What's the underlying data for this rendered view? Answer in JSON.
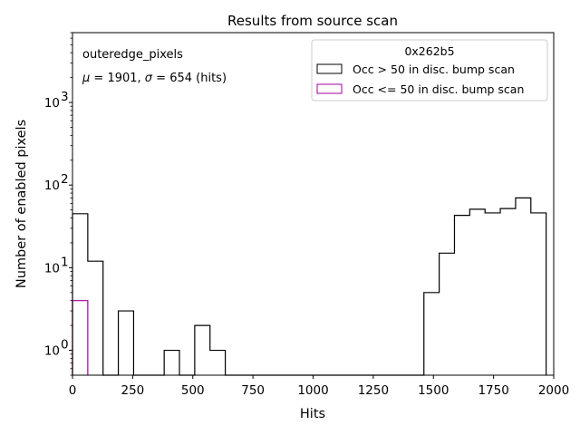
{
  "chart_data": {
    "type": "histogram",
    "title": "Results from source scan",
    "xlabel": "Hits",
    "ylabel": "Number of enabled pixels",
    "xlim": [
      0,
      2000
    ],
    "ylim": [
      0.5,
      7000
    ],
    "yscale": "log",
    "x_ticks": [
      0,
      250,
      500,
      750,
      1000,
      1250,
      1500,
      1750,
      2000
    ],
    "y_major_ticks": [
      1,
      10,
      100,
      1000
    ],
    "y_tick_labels": [
      "10",
      "10",
      "10",
      "10"
    ],
    "y_tick_exponents": [
      "0",
      "1",
      "2",
      "3"
    ],
    "annotation_line1": "outeredge_pixels",
    "annotation_line2_parts": {
      "mu_symbol": "μ",
      "mu_text": " = 1901, ",
      "sigma_symbol": "σ",
      "sigma_text": " = 654 (hits)"
    },
    "legend": {
      "title": "0x262b5",
      "placement": "upper right"
    },
    "bin_edges": [
      0,
      63.5,
      127,
      190.5,
      254,
      317.5,
      381,
      444.5,
      508,
      571.5,
      635,
      698.5,
      762,
      825.5,
      889,
      952.5,
      1016,
      1079.5,
      1143,
      1206.5,
      1270,
      1333.5,
      1397,
      1460.5,
      1524,
      1587.5,
      1651,
      1714.5,
      1778,
      1841.5,
      1905,
      1968.5
    ],
    "series": [
      {
        "name": "Occ > 50 in disc. bump scan",
        "color": "#000000",
        "values": [
          45,
          12,
          0,
          3,
          0,
          0,
          1,
          0,
          2,
          1,
          0,
          0,
          0,
          0,
          0,
          0,
          0,
          0,
          0,
          0,
          0,
          0,
          0,
          5,
          15,
          43,
          51,
          46,
          52,
          70,
          46
        ]
      },
      {
        "name": "Occ <= 50 in disc. bump scan",
        "color": "#a000a0",
        "values": [
          4,
          0,
          0,
          0,
          0,
          0,
          0,
          0,
          0,
          0,
          0,
          0,
          0,
          0,
          0,
          0,
          0,
          0,
          0,
          0,
          0,
          0,
          0,
          0,
          0,
          0,
          0,
          0,
          0,
          0,
          0
        ]
      }
    ]
  }
}
